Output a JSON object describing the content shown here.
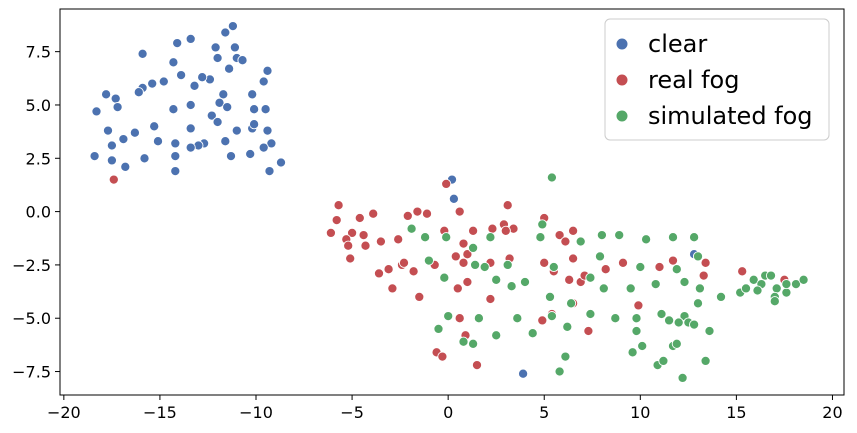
{
  "chart_data": {
    "type": "scatter",
    "title": "",
    "xlabel": "",
    "ylabel": "",
    "xlim": [
      -20.2,
      20.6
    ],
    "ylim": [
      -8.6,
      9.5
    ],
    "xticks": [
      -20,
      -15,
      -10,
      -5,
      0,
      5,
      10,
      15,
      20
    ],
    "yticks": [
      -7.5,
      -5.0,
      -2.5,
      0.0,
      2.5,
      5.0,
      7.5
    ],
    "xtick_labels": [
      "−20",
      "−15",
      "−10",
      "−5",
      "0",
      "5",
      "10",
      "15",
      "20"
    ],
    "ytick_labels": [
      "−7.5",
      "−5.0",
      "−2.5",
      "0.0",
      "2.5",
      "5.0",
      "7.5"
    ],
    "grid": false,
    "legend_position": "top-right",
    "series": [
      {
        "name": "clear",
        "color": "#4c72b0",
        "points": [
          [
            -11.2,
            8.7
          ],
          [
            -11.6,
            8.4
          ],
          [
            -12.1,
            7.7
          ],
          [
            -13.4,
            8.1
          ],
          [
            -14.1,
            7.9
          ],
          [
            -15.9,
            7.4
          ],
          [
            -14.3,
            7.0
          ],
          [
            -12.0,
            7.2
          ],
          [
            -11.0,
            7.2
          ],
          [
            -10.7,
            7.1
          ],
          [
            -11.1,
            7.7
          ],
          [
            -11.4,
            6.7
          ],
          [
            -9.4,
            6.6
          ],
          [
            -15.4,
            6.0
          ],
          [
            -15.9,
            5.8
          ],
          [
            -13.2,
            5.9
          ],
          [
            -10.2,
            5.5
          ],
          [
            -11.7,
            5.5
          ],
          [
            -12.4,
            6.2
          ],
          [
            -12.8,
            6.3
          ],
          [
            -13.9,
            6.4
          ],
          [
            -14.8,
            6.1
          ],
          [
            -9.6,
            6.1
          ],
          [
            -17.8,
            5.5
          ],
          [
            -17.3,
            5.3
          ],
          [
            -18.3,
            4.7
          ],
          [
            -16.1,
            5.6
          ],
          [
            -13.4,
            5.0
          ],
          [
            -11.9,
            5.1
          ],
          [
            -11.5,
            4.9
          ],
          [
            -10.1,
            4.8
          ],
          [
            -9.5,
            4.8
          ],
          [
            -12.3,
            4.5
          ],
          [
            -14.3,
            4.8
          ],
          [
            -15.3,
            4.0
          ],
          [
            -17.2,
            4.9
          ],
          [
            -17.7,
            3.8
          ],
          [
            -16.3,
            3.7
          ],
          [
            -16.9,
            3.4
          ],
          [
            -15.1,
            3.3
          ],
          [
            -14.2,
            3.2
          ],
          [
            -13.4,
            3.9
          ],
          [
            -12.7,
            3.2
          ],
          [
            -11.6,
            3.3
          ],
          [
            -11.0,
            3.8
          ],
          [
            -10.2,
            3.9
          ],
          [
            -10.1,
            4.1
          ],
          [
            -9.4,
            3.8
          ],
          [
            -9.2,
            3.2
          ],
          [
            -9.6,
            3.0
          ],
          [
            -11.3,
            2.6
          ],
          [
            -10.3,
            2.7
          ],
          [
            -12.0,
            4.2
          ],
          [
            -13.0,
            3.1
          ],
          [
            -13.4,
            3.0
          ],
          [
            -15.8,
            2.5
          ],
          [
            -16.8,
            2.1
          ],
          [
            -17.5,
            2.4
          ],
          [
            -17.5,
            3.1
          ],
          [
            -18.4,
            2.6
          ],
          [
            -14.2,
            1.9
          ],
          [
            -14.2,
            2.6
          ],
          [
            -8.7,
            2.3
          ],
          [
            -9.3,
            1.9
          ],
          [
            0.2,
            1.5
          ],
          [
            0.3,
            0.6
          ],
          [
            12.8,
            -2.0
          ],
          [
            3.9,
            -7.6
          ]
        ]
      },
      {
        "name": "real fog",
        "color": "#c44e52",
        "points": [
          [
            -17.4,
            1.5
          ],
          [
            -0.1,
            1.3
          ],
          [
            -5.7,
            0.3
          ],
          [
            -5.8,
            -0.4
          ],
          [
            -4.6,
            -0.3
          ],
          [
            -3.9,
            -0.1
          ],
          [
            -2.1,
            -0.2
          ],
          [
            -1.6,
            0.0
          ],
          [
            -1.1,
            -0.1
          ],
          [
            0.6,
            0.0
          ],
          [
            -6.1,
            -1.0
          ],
          [
            -5.0,
            -1.0
          ],
          [
            -5.3,
            -1.3
          ],
          [
            -5.2,
            -1.6
          ],
          [
            -4.4,
            -1.1
          ],
          [
            -4.3,
            -1.6
          ],
          [
            -3.5,
            -1.4
          ],
          [
            -2.6,
            -1.3
          ],
          [
            -1.9,
            -0.8
          ],
          [
            -0.2,
            -0.9
          ],
          [
            0.8,
            -1.5
          ],
          [
            1.3,
            -0.9
          ],
          [
            2.3,
            -0.8
          ],
          [
            2.9,
            -0.6
          ],
          [
            3.1,
            0.3
          ],
          [
            3.4,
            -0.8
          ],
          [
            3.0,
            -0.9
          ],
          [
            5.0,
            -0.3
          ],
          [
            5.8,
            -1.1
          ],
          [
            6.1,
            -1.4
          ],
          [
            6.5,
            -0.9
          ],
          [
            1.0,
            -2.0
          ],
          [
            2.2,
            -2.4
          ],
          [
            -5.1,
            -2.2
          ],
          [
            -3.6,
            -2.9
          ],
          [
            -3.1,
            -2.7
          ],
          [
            -2.4,
            -2.5
          ],
          [
            -2.3,
            -2.4
          ],
          [
            -1.8,
            -2.8
          ],
          [
            -0.7,
            -2.5
          ],
          [
            0.4,
            -2.1
          ],
          [
            0.8,
            -2.4
          ],
          [
            3.2,
            -2.2
          ],
          [
            5.0,
            -2.4
          ],
          [
            5.5,
            -2.8
          ],
          [
            6.3,
            -3.2
          ],
          [
            6.9,
            -3.3
          ],
          [
            6.5,
            -2.2
          ],
          [
            7.1,
            -3.0
          ],
          [
            8.2,
            -2.7
          ],
          [
            9.1,
            -2.4
          ],
          [
            -2.9,
            -3.6
          ],
          [
            -1.5,
            -4.0
          ],
          [
            1.0,
            -3.3
          ],
          [
            0.5,
            -3.6
          ],
          [
            2.2,
            -4.1
          ],
          [
            11.0,
            -2.6
          ],
          [
            11.7,
            -2.3
          ],
          [
            13.3,
            -3.0
          ],
          [
            13.4,
            -2.4
          ],
          [
            15.3,
            -2.8
          ],
          [
            17.5,
            -3.2
          ],
          [
            4.9,
            -5.1
          ],
          [
            5.4,
            -4.8
          ],
          [
            6.5,
            -4.3
          ],
          [
            7.3,
            -5.6
          ],
          [
            9.9,
            -4.4
          ],
          [
            0.6,
            -5.0
          ],
          [
            0.9,
            -5.8
          ],
          [
            -0.6,
            -6.6
          ],
          [
            -0.3,
            -6.8
          ],
          [
            1.5,
            -7.2
          ]
        ]
      },
      {
        "name": "simulated fog",
        "color": "#55a868",
        "points": [
          [
            5.4,
            1.6
          ],
          [
            -1.9,
            -0.8
          ],
          [
            -1.2,
            -1.2
          ],
          [
            -0.1,
            -1.2
          ],
          [
            1.3,
            -1.7
          ],
          [
            2.2,
            -1.2
          ],
          [
            4.9,
            -0.6
          ],
          [
            4.8,
            -1.2
          ],
          [
            6.9,
            -1.4
          ],
          [
            8.0,
            -1.1
          ],
          [
            8.9,
            -1.1
          ],
          [
            10.3,
            -1.3
          ],
          [
            11.7,
            -1.2
          ],
          [
            12.8,
            -1.2
          ],
          [
            13.0,
            -2.1
          ],
          [
            -1.0,
            -2.3
          ],
          [
            -0.2,
            -3.1
          ],
          [
            1.4,
            -2.5
          ],
          [
            1.9,
            -2.6
          ],
          [
            2.5,
            -3.2
          ],
          [
            3.1,
            -2.5
          ],
          [
            4.0,
            -3.3
          ],
          [
            5.5,
            -2.6
          ],
          [
            7.4,
            -3.1
          ],
          [
            7.9,
            -2.1
          ],
          [
            10.0,
            -2.6
          ],
          [
            11.9,
            -2.7
          ],
          [
            12.3,
            -3.3
          ],
          [
            13.1,
            -3.6
          ],
          [
            3.3,
            -3.5
          ],
          [
            5.3,
            -4.0
          ],
          [
            8.1,
            -3.6
          ],
          [
            9.5,
            -3.6
          ],
          [
            10.8,
            -3.4
          ],
          [
            14.2,
            -4.0
          ],
          [
            3.6,
            -5.0
          ],
          [
            5.4,
            -4.9
          ],
          [
            6.4,
            -4.3
          ],
          [
            7.4,
            -4.8
          ],
          [
            8.7,
            -5.0
          ],
          [
            9.8,
            -5.0
          ],
          [
            11.1,
            -4.8
          ],
          [
            11.5,
            -5.1
          ],
          [
            12.3,
            -4.9
          ],
          [
            12.5,
            -5.2
          ],
          [
            12.0,
            -5.2
          ],
          [
            12.8,
            -5.3
          ],
          [
            13.0,
            -4.3
          ],
          [
            13.6,
            -5.6
          ],
          [
            -0.5,
            -5.5
          ],
          [
            0.0,
            -4.9
          ],
          [
            1.6,
            -5.0
          ],
          [
            4.4,
            -5.7
          ],
          [
            6.2,
            -5.4
          ],
          [
            9.8,
            -5.6
          ],
          [
            0.8,
            -6.1
          ],
          [
            1.3,
            -6.2
          ],
          [
            2.5,
            -5.8
          ],
          [
            10.1,
            -6.3
          ],
          [
            11.7,
            -6.3
          ],
          [
            11.9,
            -6.2
          ],
          [
            6.1,
            -6.8
          ],
          [
            9.6,
            -6.6
          ],
          [
            5.8,
            -7.5
          ],
          [
            10.9,
            -7.2
          ],
          [
            11.2,
            -7.0
          ],
          [
            12.2,
            -7.8
          ],
          [
            13.4,
            -7.0
          ],
          [
            15.2,
            -3.8
          ],
          [
            15.5,
            -3.6
          ],
          [
            15.9,
            -3.2
          ],
          [
            16.3,
            -3.4
          ],
          [
            16.5,
            -3.0
          ],
          [
            16.8,
            -3.0
          ],
          [
            17.1,
            -3.6
          ],
          [
            17.6,
            -3.8
          ],
          [
            17.6,
            -3.4
          ],
          [
            18.1,
            -3.4
          ],
          [
            18.5,
            -3.2
          ],
          [
            16.1,
            -3.7
          ],
          [
            17.0,
            -4.0
          ],
          [
            17.0,
            -4.2
          ]
        ]
      }
    ]
  }
}
